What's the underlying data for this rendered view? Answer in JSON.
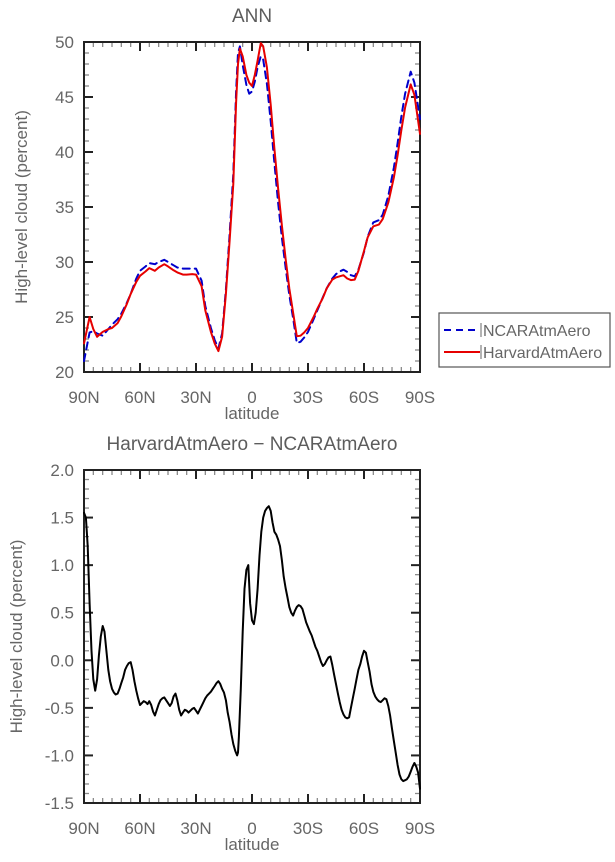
{
  "page": {
    "background": "#ffffff",
    "text_color": "#666666",
    "axis_color": "#222222"
  },
  "chart_data": [
    {
      "type": "line",
      "title": "ANN",
      "xlabel": "latitude",
      "ylabel": "High-level cloud (percent)",
      "xlim": [
        90,
        -90
      ],
      "ylim": [
        20,
        50
      ],
      "grid": false,
      "x_major_ticks": {
        "values": [
          90,
          60,
          30,
          0,
          -30,
          -60,
          -90
        ],
        "labels": [
          "90N",
          "60N",
          "30N",
          "0",
          "30S",
          "60S",
          "90S"
        ]
      },
      "x_minor_step": 5,
      "y_major_ticks": {
        "values": [
          20,
          25,
          30,
          35,
          40,
          45,
          50
        ],
        "labels": [
          "20",
          "25",
          "30",
          "35",
          "40",
          "45",
          "50"
        ]
      },
      "y_minor_step": 1,
      "legend": {
        "position": "outside-right",
        "entries": [
          "NCARAtmAero",
          "HarvardAtmAero"
        ]
      },
      "series": [
        {
          "name": "NCARAtmAero",
          "color": "#0000cc",
          "style": "dashed",
          "x": [
            90,
            87,
            85,
            83,
            80,
            77,
            75,
            72,
            70,
            67,
            65,
            62,
            60,
            57,
            55,
            52,
            50,
            47,
            45,
            42,
            40,
            37,
            35,
            32,
            30,
            27,
            25,
            22,
            20,
            18,
            16,
            14,
            12,
            10,
            8.5,
            7.5,
            6.5,
            5,
            3,
            1.5,
            0,
            -1.5,
            -3,
            -4.7,
            -6,
            -8,
            -10,
            -12,
            -14,
            -16,
            -18,
            -20,
            -22,
            -24,
            -26,
            -28,
            -30,
            -33,
            -35,
            -38,
            -40,
            -43,
            -45,
            -47,
            -49,
            -51,
            -53,
            -55,
            -57,
            -60,
            -62,
            -65,
            -68,
            -70,
            -73,
            -76,
            -78,
            -80,
            -82,
            -85,
            -87,
            -90
          ],
          "y": [
            21.0,
            23.6,
            23.7,
            23.5,
            23.3,
            23.9,
            24.3,
            24.8,
            25.3,
            26.3,
            27.1,
            28.5,
            29.2,
            29.6,
            29.9,
            29.8,
            30.0,
            30.2,
            30.0,
            29.7,
            29.5,
            29.4,
            29.4,
            29.4,
            29.4,
            28.3,
            26.0,
            24.0,
            22.9,
            22.15,
            23.5,
            27.5,
            32.5,
            38.0,
            45.5,
            49.0,
            49.6,
            47.9,
            46.1,
            45.3,
            45.5,
            46.4,
            47.7,
            48.7,
            48.4,
            46.2,
            42.8,
            39.0,
            35.4,
            32.2,
            29.5,
            27.0,
            24.9,
            22.65,
            22.75,
            23.15,
            23.65,
            24.8,
            25.6,
            26.8,
            27.6,
            28.5,
            28.9,
            29.15,
            29.3,
            29.1,
            28.8,
            28.7,
            29.3,
            30.9,
            32.3,
            33.6,
            33.8,
            34.3,
            36.0,
            38.6,
            40.8,
            43.2,
            45.3,
            47.3,
            46.3,
            43.0
          ]
        },
        {
          "name": "HarvardAtmAero",
          "color": "#e60000",
          "style": "solid",
          "x": [
            90,
            87,
            85,
            83,
            80,
            77,
            75,
            72,
            70,
            67,
            65,
            62,
            60,
            57,
            55,
            52,
            50,
            47,
            45,
            42,
            40,
            37,
            35,
            32,
            30,
            27,
            25,
            22,
            20,
            18,
            16,
            14,
            12,
            10,
            8.5,
            7.5,
            6.5,
            5,
            3,
            1.5,
            0,
            -1.5,
            -3,
            -4.7,
            -6,
            -8,
            -10,
            -12,
            -14,
            -16,
            -18,
            -20,
            -22,
            -24,
            -26,
            -28,
            -30,
            -33,
            -35,
            -38,
            -40,
            -43,
            -45,
            -47,
            -49,
            -51,
            -53,
            -55,
            -57,
            -60,
            -62,
            -65,
            -68,
            -70,
            -73,
            -76,
            -78,
            -80,
            -82,
            -85,
            -87,
            -90
          ],
          "y": [
            22.6,
            25.0,
            23.9,
            23.2,
            23.65,
            23.9,
            24.0,
            24.45,
            25.05,
            26.2,
            27.1,
            28.2,
            28.75,
            29.15,
            29.45,
            29.2,
            29.5,
            29.8,
            29.6,
            29.25,
            29.05,
            28.85,
            28.85,
            28.9,
            28.85,
            27.8,
            25.6,
            23.65,
            22.6,
            21.9,
            23.2,
            27.1,
            31.9,
            37.1,
            44.5,
            48.0,
            49.4,
            48.7,
            47.0,
            46.3,
            46.0,
            47.0,
            48.3,
            49.9,
            49.6,
            47.7,
            44.3,
            40.3,
            36.7,
            33.3,
            30.3,
            27.6,
            25.4,
            23.25,
            23.3,
            23.6,
            24.0,
            25.0,
            25.75,
            26.75,
            27.6,
            28.4,
            28.6,
            28.7,
            28.8,
            28.5,
            28.35,
            28.4,
            29.2,
            31.0,
            32.25,
            33.25,
            33.4,
            33.9,
            35.4,
            37.7,
            39.7,
            41.95,
            44.05,
            46.15,
            45.2,
            41.65
          ]
        }
      ]
    },
    {
      "type": "line",
      "title": "HarvardAtmAero − NCARAtmAero",
      "xlabel": "latitude",
      "ylabel": "High-level cloud (percent)",
      "xlim": [
        90,
        -90
      ],
      "ylim": [
        -1.5,
        2.0
      ],
      "grid": false,
      "x_major_ticks": {
        "values": [
          90,
          60,
          30,
          0,
          -30,
          -60,
          -90
        ],
        "labels": [
          "90N",
          "60N",
          "30N",
          "0",
          "30S",
          "60S",
          "90S"
        ]
      },
      "x_minor_step": 5,
      "y_major_ticks": {
        "values": [
          2.0,
          1.5,
          1.0,
          0.5,
          0.0,
          -0.5,
          -1.0,
          -1.5
        ],
        "labels": [
          "2.0",
          "1.5",
          "1.0",
          "0.5",
          "0.0",
          "-0.5",
          "-1.0",
          "-1.5"
        ]
      },
      "y_minor_step": 0.1,
      "series": [
        {
          "name": "HarvardAtmAero − NCARAtmAero",
          "color": "#000000",
          "style": "solid",
          "x": [
            90,
            89,
            88,
            87,
            86,
            85,
            84,
            83,
            82,
            81,
            80,
            79,
            78,
            77,
            76,
            75,
            74,
            73,
            72,
            71,
            70,
            69,
            68,
            67,
            66,
            65,
            64,
            63,
            62,
            61,
            60,
            59,
            58,
            57,
            56,
            55,
            54,
            53,
            52,
            51,
            50,
            49,
            48,
            47,
            46,
            45,
            44,
            43,
            42,
            41,
            40,
            39,
            38,
            37,
            36,
            35,
            34,
            33,
            32,
            31,
            30,
            29,
            28,
            27,
            26,
            25,
            24,
            23,
            22,
            21,
            20,
            19,
            18,
            17,
            16,
            15,
            14,
            13,
            12,
            11,
            10,
            9,
            8,
            7.5,
            7,
            6,
            5,
            4,
            3,
            2,
            1,
            0,
            -1,
            -2,
            -3,
            -4,
            -5,
            -6,
            -7,
            -8,
            -9,
            -10,
            -11,
            -12,
            -13,
            -14,
            -15,
            -16,
            -17,
            -18,
            -19,
            -20,
            -21,
            -22,
            -23,
            -24,
            -25,
            -26,
            -27,
            -28,
            -29,
            -30,
            -31,
            -32,
            -33,
            -34,
            -35,
            -36,
            -37,
            -38,
            -39,
            -40,
            -41,
            -42,
            -43,
            -44,
            -45,
            -46,
            -47,
            -48,
            -49,
            -50,
            -51,
            -52,
            -53,
            -54,
            -55,
            -56,
            -57,
            -58,
            -59,
            -60,
            -61,
            -62,
            -63,
            -64,
            -65,
            -66,
            -67,
            -68,
            -69,
            -70,
            -71,
            -72,
            -73,
            -74,
            -75,
            -76,
            -77,
            -78,
            -79,
            -80,
            -81,
            -82,
            -83,
            -84,
            -85,
            -86,
            -87,
            -88,
            -89,
            -90
          ],
          "y": [
            1.55,
            1.5,
            1.2,
            0.6,
            0.1,
            -0.2,
            -0.32,
            -0.2,
            0.05,
            0.25,
            0.36,
            0.3,
            0.1,
            -0.1,
            -0.22,
            -0.3,
            -0.34,
            -0.36,
            -0.35,
            -0.3,
            -0.24,
            -0.18,
            -0.1,
            -0.06,
            -0.03,
            -0.02,
            -0.1,
            -0.22,
            -0.32,
            -0.4,
            -0.47,
            -0.45,
            -0.43,
            -0.44,
            -0.46,
            -0.43,
            -0.47,
            -0.54,
            -0.58,
            -0.52,
            -0.46,
            -0.42,
            -0.4,
            -0.39,
            -0.42,
            -0.45,
            -0.48,
            -0.45,
            -0.38,
            -0.35,
            -0.42,
            -0.52,
            -0.58,
            -0.55,
            -0.52,
            -0.53,
            -0.55,
            -0.53,
            -0.51,
            -0.5,
            -0.53,
            -0.56,
            -0.52,
            -0.48,
            -0.44,
            -0.4,
            -0.37,
            -0.35,
            -0.33,
            -0.3,
            -0.27,
            -0.24,
            -0.22,
            -0.25,
            -0.3,
            -0.34,
            -0.42,
            -0.55,
            -0.65,
            -0.78,
            -0.88,
            -0.95,
            -1.0,
            -0.97,
            -0.8,
            -0.3,
            0.3,
            0.75,
            0.95,
            1.0,
            0.6,
            0.42,
            0.38,
            0.5,
            0.75,
            1.1,
            1.35,
            1.5,
            1.57,
            1.6,
            1.62,
            1.57,
            1.45,
            1.35,
            1.32,
            1.27,
            1.2,
            1.05,
            0.88,
            0.76,
            0.66,
            0.56,
            0.5,
            0.47,
            0.52,
            0.56,
            0.58,
            0.57,
            0.54,
            0.47,
            0.4,
            0.35,
            0.3,
            0.26,
            0.2,
            0.14,
            0.1,
            0.04,
            -0.02,
            -0.06,
            -0.04,
            0.0,
            0.03,
            0.04,
            -0.05,
            -0.15,
            -0.25,
            -0.35,
            -0.44,
            -0.52,
            -0.57,
            -0.6,
            -0.61,
            -0.6,
            -0.5,
            -0.4,
            -0.3,
            -0.2,
            -0.1,
            -0.04,
            0.04,
            0.1,
            0.08,
            -0.02,
            -0.12,
            -0.25,
            -0.33,
            -0.38,
            -0.41,
            -0.43,
            -0.44,
            -0.42,
            -0.4,
            -0.41,
            -0.48,
            -0.58,
            -0.72,
            -0.85,
            -0.97,
            -1.1,
            -1.2,
            -1.25,
            -1.27,
            -1.26,
            -1.25,
            -1.22,
            -1.17,
            -1.12,
            -1.08,
            -1.12,
            -1.18,
            -1.35
          ]
        }
      ]
    }
  ]
}
